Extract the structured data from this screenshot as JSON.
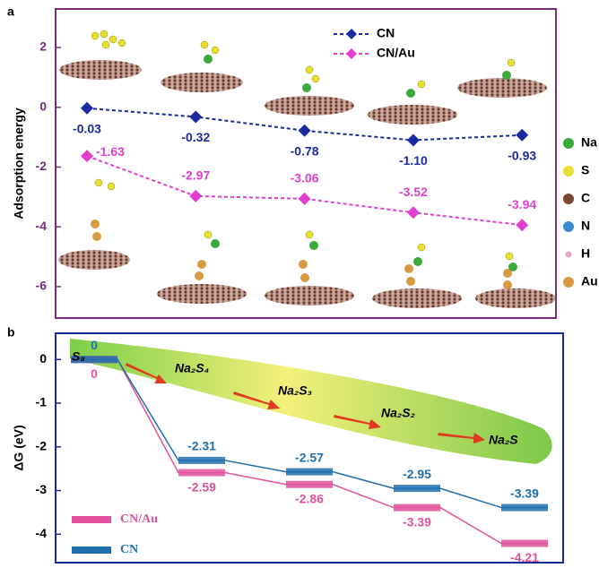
{
  "chart_data": [
    {
      "type": "line",
      "panel_label": "a",
      "y_label": "Adsorption energy",
      "categories": [
        null,
        null,
        null,
        null,
        null
      ],
      "ylim": [
        -7.05,
        3.29
      ],
      "yticks": [
        2,
        0,
        -2,
        -4,
        -6
      ],
      "legend": "top",
      "frame_color": "#7b2a7b",
      "tick_color": "#7b2a7b",
      "series": [
        {
          "name": "CN",
          "color": "#1c2aa0",
          "values": [
            -0.03,
            -0.32,
            -0.78,
            -1.1,
            -0.93
          ],
          "value_labels": [
            "-0.03",
            "-0.32",
            "-0.78",
            "-1.10",
            "-0.93"
          ]
        },
        {
          "name": "CN/Au",
          "color": "#e03fcf",
          "values": [
            -1.63,
            -2.97,
            -3.06,
            -3.52,
            -3.94
          ],
          "value_labels": [
            "-1.63",
            "-2.97",
            "-3.06",
            "-3.52",
            "-3.94"
          ]
        }
      ],
      "atom_legend": [
        {
          "label": "Na",
          "color": "#3aaa3a"
        },
        {
          "label": "S",
          "color": "#e8e030"
        },
        {
          "label": "C",
          "color": "#7a4a30"
        },
        {
          "label": "N",
          "color": "#3a8ad0"
        },
        {
          "label": "H",
          "color": "#e8a8c8"
        },
        {
          "label": "Au",
          "color": "#d89a40"
        }
      ]
    },
    {
      "type": "energy-levels",
      "panel_label": "b",
      "y_label": "ΔG (eV)",
      "categories": [
        null,
        null,
        null,
        null,
        null
      ],
      "ylim": [
        -4.65,
        0.6
      ],
      "yticks": [
        0,
        -1,
        -2,
        -3,
        -4
      ],
      "legend": "lower left",
      "frame_color": "#1a2a9a",
      "tick_color": "#000000",
      "series": [
        {
          "name": "CN/Au",
          "color": "#e0529c",
          "values": [
            0,
            -2.59,
            -2.86,
            -3.39,
            -4.21
          ],
          "value_labels": [
            "0",
            "-2.59",
            "-2.86",
            "-3.39",
            "-4.21"
          ]
        },
        {
          "name": "CN",
          "color": "#1f6fae",
          "values": [
            0,
            -2.31,
            -2.57,
            -2.95,
            -3.39
          ],
          "value_labels": [
            "0",
            "-2.31",
            "-2.57",
            "-2.95",
            "-3.39"
          ]
        }
      ],
      "pathway": [
        "S₈",
        "Na₂S₄",
        "Na₂S₃",
        "Na₂S₂",
        "Na₂S"
      ]
    }
  ]
}
